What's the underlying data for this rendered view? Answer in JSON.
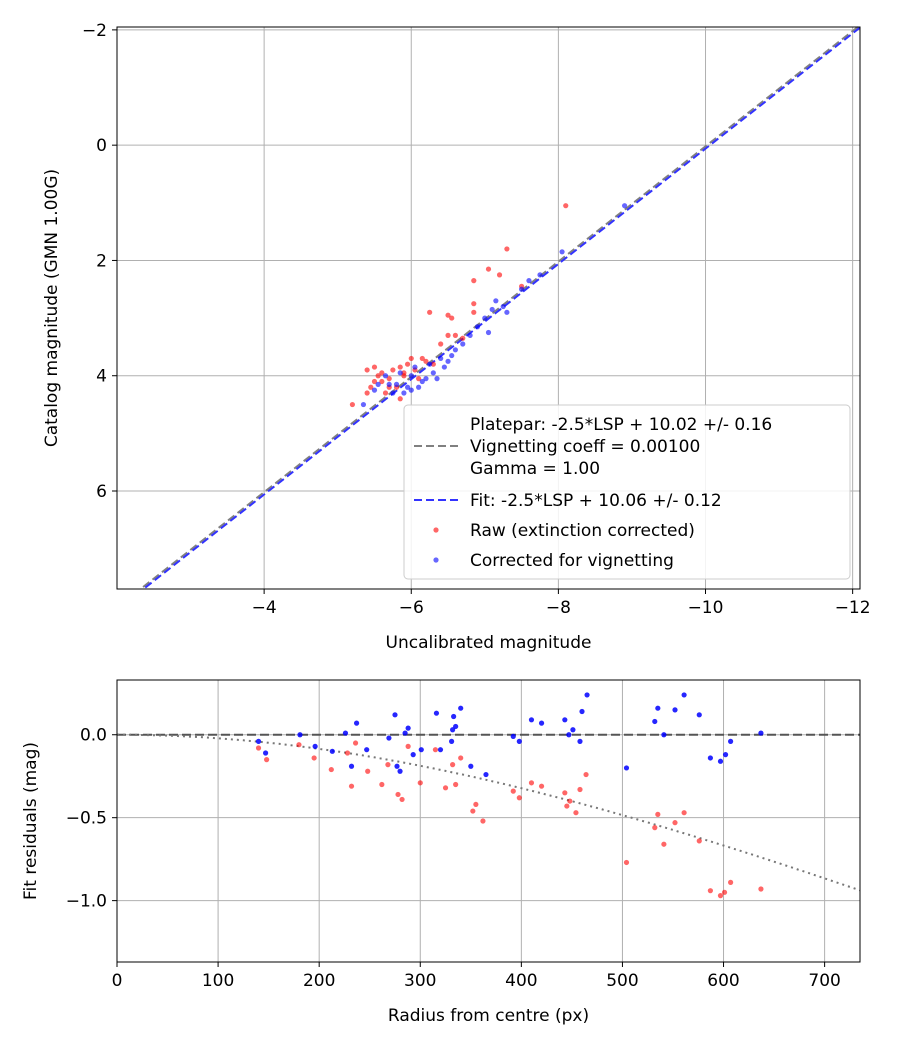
{
  "colors": {
    "raw": "#ff0000",
    "corrected": "#0000ff",
    "fit_line": "#3333ff",
    "platepar_line": "#808080",
    "grid": "#b0b0b0"
  },
  "chart_data": [
    {
      "type": "scatter",
      "xlabel": "Uncalibrated magnitude",
      "ylabel": "Catalog magnitude (GMN 1.00G)",
      "xlim": [
        -2.0,
        -12.1
      ],
      "ylim": [
        7.7,
        -2.05
      ],
      "x_inverted": true,
      "y_inverted": true,
      "grid": true,
      "xticks": [
        -4,
        -6,
        -8,
        -10,
        -12
      ],
      "yticks": [
        -2,
        0,
        2,
        4,
        6
      ],
      "xtick_labels": [
        "−4",
        "−6",
        "−8",
        "−10",
        "−12"
      ],
      "ytick_labels": [
        "−2",
        "0",
        "2",
        "4",
        "6"
      ],
      "legend_position": "lower-right",
      "legend": [
        {
          "label": "Platepar: -2.5*LSP + 10.02 +/- 0.16",
          "style": "dashed",
          "color": "gray"
        },
        {
          "label": "Vignetting coeff = 0.00100",
          "style": "none"
        },
        {
          "label": "Gamma = 1.00",
          "style": "none"
        },
        {
          "label": "Fit: -2.5*LSP + 10.06 +/- 0.12",
          "style": "dashed",
          "color": "blue"
        },
        {
          "label": "Raw (extinction corrected)",
          "style": "marker",
          "color": "red"
        },
        {
          "label": "Corrected for vignetting",
          "style": "marker",
          "color": "blue"
        }
      ],
      "lines": [
        {
          "name": "Platepar",
          "slope": 1,
          "intercept": 10.02
        },
        {
          "name": "Fit",
          "slope": 1,
          "intercept": 10.06
        }
      ],
      "series": [
        {
          "name": "Raw (extinction corrected)",
          "points": [
            [
              -5.2,
              4.5
            ],
            [
              -5.4,
              4.3
            ],
            [
              -5.45,
              4.2
            ],
            [
              -5.5,
              4.1
            ],
            [
              -5.55,
              4.0
            ],
            [
              -5.6,
              3.95
            ],
            [
              -5.7,
              4.05
            ],
            [
              -5.75,
              3.9
            ],
            [
              -5.8,
              4.2
            ],
            [
              -5.85,
              3.85
            ],
            [
              -5.9,
              4.0
            ],
            [
              -5.95,
              3.8
            ],
            [
              -6.0,
              3.7
            ],
            [
              -5.6,
              4.1
            ],
            [
              -5.65,
              4.3
            ],
            [
              -5.7,
              4.2
            ],
            [
              -5.5,
              3.85
            ],
            [
              -5.4,
              3.9
            ],
            [
              -5.9,
              3.95
            ],
            [
              -6.05,
              3.9
            ],
            [
              -6.1,
              4.05
            ],
            [
              -6.2,
              3.75
            ],
            [
              -6.3,
              3.8
            ],
            [
              -6.4,
              3.45
            ],
            [
              -6.5,
              3.3
            ],
            [
              -6.55,
              3.0
            ],
            [
              -6.6,
              3.3
            ],
            [
              -6.7,
              3.35
            ],
            [
              -6.85,
              2.75
            ],
            [
              -6.85,
              2.9
            ],
            [
              -6.85,
              2.35
            ],
            [
              -7.05,
              2.15
            ],
            [
              -7.2,
              2.25
            ],
            [
              -7.3,
              1.8
            ],
            [
              -7.5,
              2.45
            ],
            [
              -6.25,
              2.9
            ],
            [
              -6.5,
              2.95
            ],
            [
              -8.1,
              1.05
            ],
            [
              -5.85,
              4.4
            ],
            [
              -6.15,
              3.7
            ]
          ]
        },
        {
          "name": "Corrected for vignetting",
          "points": [
            [
              -5.35,
              4.5
            ],
            [
              -5.5,
              4.25
            ],
            [
              -5.55,
              4.15
            ],
            [
              -5.65,
              4.0
            ],
            [
              -5.75,
              4.3
            ],
            [
              -5.8,
              4.15
            ],
            [
              -5.9,
              4.3
            ],
            [
              -6.0,
              4.0
            ],
            [
              -6.05,
              3.85
            ],
            [
              -6.1,
              4.2
            ],
            [
              -6.2,
              4.05
            ],
            [
              -6.25,
              3.8
            ],
            [
              -6.3,
              3.95
            ],
            [
              -6.4,
              3.7
            ],
            [
              -6.45,
              3.85
            ],
            [
              -6.5,
              3.75
            ],
            [
              -6.6,
              3.55
            ],
            [
              -6.7,
              3.45
            ],
            [
              -6.8,
              3.3
            ],
            [
              -6.9,
              3.15
            ],
            [
              -7.0,
              3.0
            ],
            [
              -7.1,
              2.85
            ],
            [
              -7.05,
              3.25
            ],
            [
              -7.15,
              2.7
            ],
            [
              -7.3,
              2.9
            ],
            [
              -7.5,
              2.5
            ],
            [
              -7.6,
              2.35
            ],
            [
              -7.75,
              2.25
            ],
            [
              -8.05,
              1.85
            ],
            [
              -8.9,
              1.05
            ],
            [
              -6.15,
              4.1
            ],
            [
              -5.95,
              4.2
            ],
            [
              -6.35,
              4.05
            ],
            [
              -5.85,
              3.95
            ],
            [
              -6.55,
              3.65
            ],
            [
              -7.25,
              2.8
            ],
            [
              -6.0,
              4.25
            ],
            [
              -5.7,
              4.15
            ]
          ]
        }
      ]
    },
    {
      "type": "scatter",
      "xlabel": "Radius from centre (px)",
      "ylabel": "Fit residuals (mag)",
      "xlim": [
        0,
        735
      ],
      "ylim": [
        -1.37,
        0.33
      ],
      "grid": true,
      "xticks": [
        0,
        100,
        200,
        300,
        400,
        500,
        600,
        700
      ],
      "yticks": [
        0.0,
        -0.5,
        -1.0
      ],
      "xtick_labels": [
        "0",
        "100",
        "200",
        "300",
        "400",
        "500",
        "600",
        "700"
      ],
      "ytick_labels": [
        "0.0",
        "−0.5",
        "−1.0"
      ],
      "lines": [
        {
          "name": "zero",
          "style": "dashed",
          "y": 0
        },
        {
          "name": "vignetting model",
          "style": "dotted",
          "coeff": 0.001
        }
      ],
      "series": [
        {
          "name": "Raw (extinction corrected)",
          "points": [
            [
              140,
              -0.08
            ],
            [
              148,
              -0.15
            ],
            [
              180,
              -0.06
            ],
            [
              195,
              -0.14
            ],
            [
              212,
              -0.21
            ],
            [
              232,
              -0.31
            ],
            [
              236,
              -0.05
            ],
            [
              248,
              -0.22
            ],
            [
              262,
              -0.3
            ],
            [
              268,
              -0.18
            ],
            [
              278,
              -0.36
            ],
            [
              282,
              -0.39
            ],
            [
              288,
              -0.07
            ],
            [
              300,
              -0.29
            ],
            [
              315,
              -0.09
            ],
            [
              325,
              -0.32
            ],
            [
              332,
              -0.18
            ],
            [
              335,
              -0.3
            ],
            [
              340,
              -0.14
            ],
            [
              352,
              -0.46
            ],
            [
              355,
              -0.42
            ],
            [
              362,
              -0.52
            ],
            [
              392,
              -0.34
            ],
            [
              398,
              -0.38
            ],
            [
              410,
              -0.29
            ],
            [
              420,
              -0.31
            ],
            [
              443,
              -0.35
            ],
            [
              445,
              -0.43
            ],
            [
              448,
              -0.4
            ],
            [
              454,
              -0.47
            ],
            [
              458,
              -0.33
            ],
            [
              464,
              -0.24
            ],
            [
              504,
              -0.77
            ],
            [
              532,
              -0.56
            ],
            [
              535,
              -0.48
            ],
            [
              541,
              -0.66
            ],
            [
              552,
              -0.53
            ],
            [
              561,
              -0.47
            ],
            [
              576,
              -0.64
            ],
            [
              587,
              -0.94
            ],
            [
              597,
              -0.97
            ],
            [
              601,
              -0.95
            ],
            [
              607,
              -0.89
            ],
            [
              637,
              -0.93
            ],
            [
              228,
              -0.11
            ]
          ]
        },
        {
          "name": "Corrected for vignetting",
          "points": [
            [
              140,
              -0.04
            ],
            [
              147,
              -0.11
            ],
            [
              181,
              0.0
            ],
            [
              196,
              -0.07
            ],
            [
              213,
              -0.1
            ],
            [
              226,
              0.01
            ],
            [
              232,
              -0.19
            ],
            [
              237,
              0.07
            ],
            [
              247,
              -0.09
            ],
            [
              269,
              -0.02
            ],
            [
              275,
              0.12
            ],
            [
              277,
              -0.19
            ],
            [
              280,
              -0.22
            ],
            [
              285,
              0.01
            ],
            [
              288,
              0.04
            ],
            [
              293,
              -0.12
            ],
            [
              301,
              -0.09
            ],
            [
              316,
              0.13
            ],
            [
              320,
              -0.09
            ],
            [
              331,
              -0.04
            ],
            [
              332,
              0.03
            ],
            [
              335,
              0.05
            ],
            [
              333,
              0.11
            ],
            [
              340,
              0.16
            ],
            [
              350,
              -0.19
            ],
            [
              365,
              -0.24
            ],
            [
              392,
              -0.01
            ],
            [
              398,
              -0.04
            ],
            [
              410,
              0.09
            ],
            [
              420,
              0.07
            ],
            [
              443,
              0.09
            ],
            [
              447,
              0.0
            ],
            [
              451,
              0.03
            ],
            [
              458,
              -0.04
            ],
            [
              460,
              0.14
            ],
            [
              465,
              0.24
            ],
            [
              504,
              -0.2
            ],
            [
              532,
              0.08
            ],
            [
              535,
              0.16
            ],
            [
              541,
              0.0
            ],
            [
              552,
              0.15
            ],
            [
              561,
              0.24
            ],
            [
              576,
              0.12
            ],
            [
              587,
              -0.14
            ],
            [
              597,
              -0.16
            ],
            [
              602,
              -0.12
            ],
            [
              607,
              -0.04
            ],
            [
              637,
              0.01
            ]
          ]
        }
      ]
    }
  ]
}
